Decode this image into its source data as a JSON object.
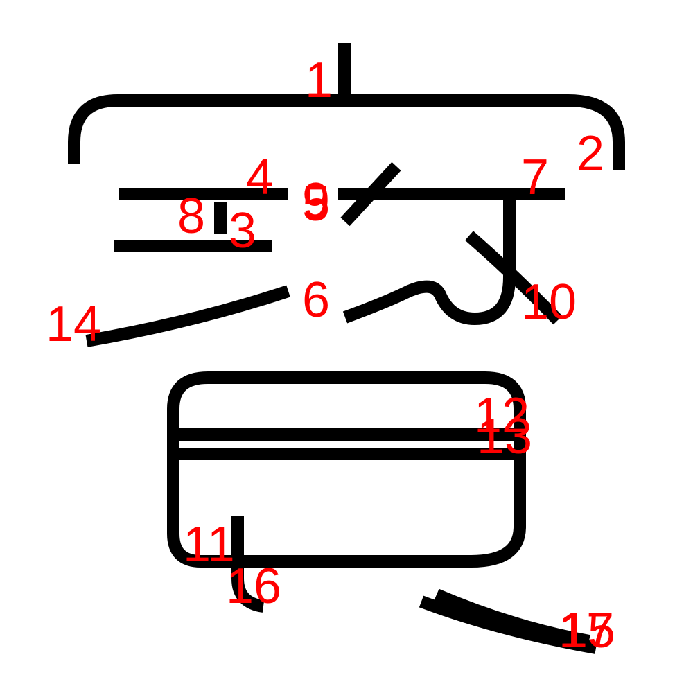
{
  "colors": {
    "stroke": "#000000",
    "number": "#ff0000",
    "background": "#ffffff"
  },
  "stroke_numbers": [
    "1",
    "2",
    "3",
    "4",
    "5",
    "6",
    "7",
    "8",
    "9",
    "10",
    "11",
    "12",
    "13",
    "14",
    "15",
    "16",
    "17"
  ]
}
